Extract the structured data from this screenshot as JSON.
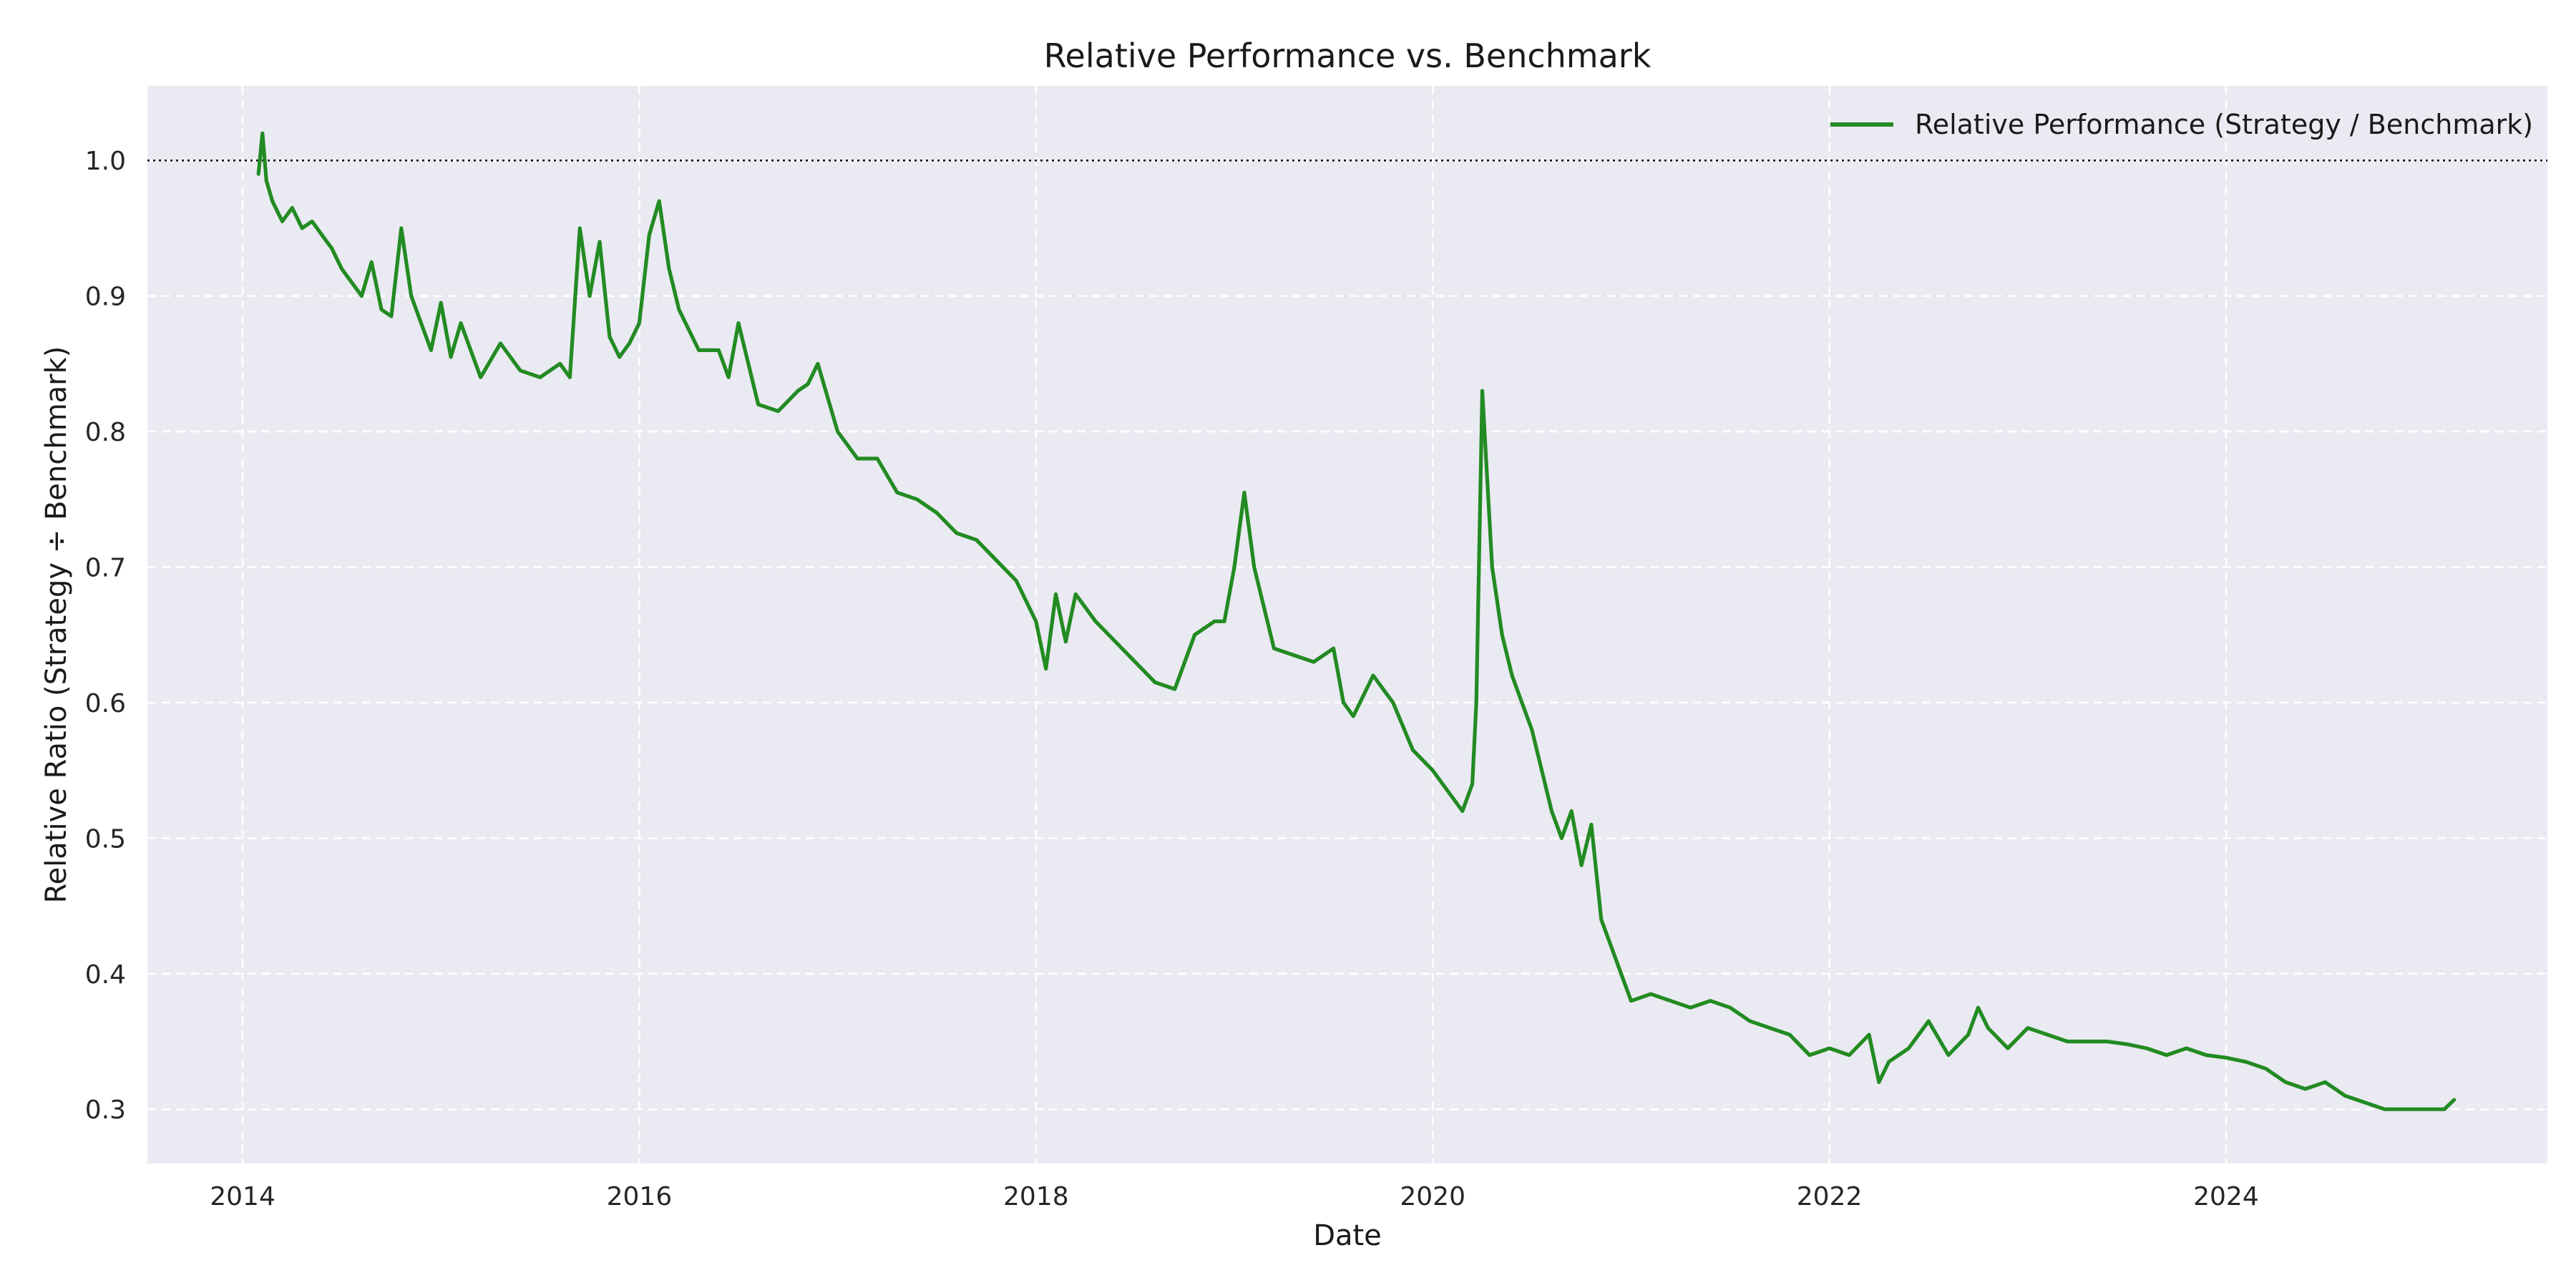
{
  "chart_data": {
    "type": "line",
    "title": "Relative Performance vs. Benchmark",
    "xlabel": "Date",
    "ylabel": "Relative Ratio (Strategy ÷ Benchmark)",
    "xlim": [
      2013.52,
      2025.62
    ],
    "ylim": [
      0.26,
      1.055
    ],
    "x_ticks": [
      2014,
      2016,
      2018,
      2020,
      2022,
      2024
    ],
    "y_ticks": [
      0.3,
      0.4,
      0.5,
      0.6,
      0.7,
      0.8,
      0.9,
      1.0
    ],
    "reference_line": {
      "y": 1.0,
      "style": "dotted",
      "color": "#000000"
    },
    "grid": true,
    "legend_position": "top-right",
    "colors": {
      "series": "#228b22",
      "plot_bg": "#eaeaf2",
      "grid": "#ffffff"
    },
    "series": [
      {
        "name": "Relative Performance (Strategy / Benchmark)",
        "x": [
          2014.08,
          2014.1,
          2014.12,
          2014.15,
          2014.2,
          2014.25,
          2014.3,
          2014.35,
          2014.4,
          2014.45,
          2014.5,
          2014.55,
          2014.6,
          2014.65,
          2014.7,
          2014.75,
          2014.8,
          2014.85,
          2014.9,
          2014.95,
          2015.0,
          2015.05,
          2015.1,
          2015.15,
          2015.2,
          2015.3,
          2015.4,
          2015.5,
          2015.6,
          2015.65,
          2015.7,
          2015.75,
          2015.8,
          2015.85,
          2015.9,
          2015.95,
          2016.0,
          2016.05,
          2016.1,
          2016.15,
          2016.2,
          2016.3,
          2016.4,
          2016.45,
          2016.5,
          2016.6,
          2016.7,
          2016.8,
          2016.85,
          2016.9,
          2017.0,
          2017.1,
          2017.2,
          2017.3,
          2017.4,
          2017.5,
          2017.6,
          2017.7,
          2017.8,
          2017.9,
          2018.0,
          2018.05,
          2018.1,
          2018.15,
          2018.2,
          2018.25,
          2018.3,
          2018.4,
          2018.5,
          2018.6,
          2018.7,
          2018.8,
          2018.9,
          2018.95,
          2019.0,
          2019.05,
          2019.1,
          2019.2,
          2019.3,
          2019.4,
          2019.5,
          2019.55,
          2019.6,
          2019.7,
          2019.8,
          2019.9,
          2020.0,
          2020.1,
          2020.15,
          2020.2,
          2020.22,
          2020.25,
          2020.3,
          2020.35,
          2020.4,
          2020.45,
          2020.5,
          2020.6,
          2020.65,
          2020.7,
          2020.75,
          2020.8,
          2020.85,
          2020.9,
          2021.0,
          2021.1,
          2021.2,
          2021.3,
          2021.4,
          2021.5,
          2021.6,
          2021.7,
          2021.8,
          2021.9,
          2022.0,
          2022.1,
          2022.2,
          2022.25,
          2022.3,
          2022.4,
          2022.5,
          2022.6,
          2022.7,
          2022.75,
          2022.8,
          2022.9,
          2023.0,
          2023.1,
          2023.2,
          2023.3,
          2023.4,
          2023.5,
          2023.6,
          2023.7,
          2023.8,
          2023.9,
          2024.0,
          2024.1,
          2024.2,
          2024.3,
          2024.4,
          2024.5,
          2024.6,
          2024.7,
          2024.8,
          2024.9,
          2025.0,
          2025.1,
          2025.15
        ],
        "y": [
          0.99,
          1.02,
          0.985,
          0.97,
          0.955,
          0.965,
          0.95,
          0.955,
          0.945,
          0.935,
          0.92,
          0.91,
          0.9,
          0.925,
          0.89,
          0.885,
          0.95,
          0.9,
          0.88,
          0.86,
          0.895,
          0.855,
          0.88,
          0.86,
          0.84,
          0.865,
          0.845,
          0.84,
          0.85,
          0.84,
          0.95,
          0.9,
          0.94,
          0.87,
          0.855,
          0.865,
          0.88,
          0.945,
          0.97,
          0.92,
          0.89,
          0.86,
          0.86,
          0.84,
          0.88,
          0.82,
          0.815,
          0.83,
          0.835,
          0.85,
          0.8,
          0.78,
          0.78,
          0.755,
          0.75,
          0.74,
          0.725,
          0.72,
          0.705,
          0.69,
          0.66,
          0.625,
          0.68,
          0.645,
          0.68,
          0.67,
          0.66,
          0.645,
          0.63,
          0.615,
          0.61,
          0.65,
          0.66,
          0.66,
          0.7,
          0.755,
          0.7,
          0.64,
          0.635,
          0.63,
          0.64,
          0.6,
          0.59,
          0.62,
          0.6,
          0.565,
          0.55,
          0.53,
          0.52,
          0.54,
          0.6,
          0.83,
          0.7,
          0.65,
          0.62,
          0.6,
          0.58,
          0.52,
          0.5,
          0.52,
          0.48,
          0.51,
          0.44,
          0.42,
          0.38,
          0.385,
          0.38,
          0.375,
          0.38,
          0.375,
          0.365,
          0.36,
          0.355,
          0.34,
          0.345,
          0.34,
          0.355,
          0.32,
          0.335,
          0.345,
          0.365,
          0.34,
          0.355,
          0.375,
          0.36,
          0.345,
          0.36,
          0.355,
          0.35,
          0.35,
          0.35,
          0.348,
          0.345,
          0.34,
          0.345,
          0.34,
          0.338,
          0.335,
          0.33,
          0.32,
          0.315,
          0.32,
          0.31,
          0.305,
          0.3,
          0.3,
          0.3,
          0.3,
          0.307
        ]
      }
    ]
  }
}
